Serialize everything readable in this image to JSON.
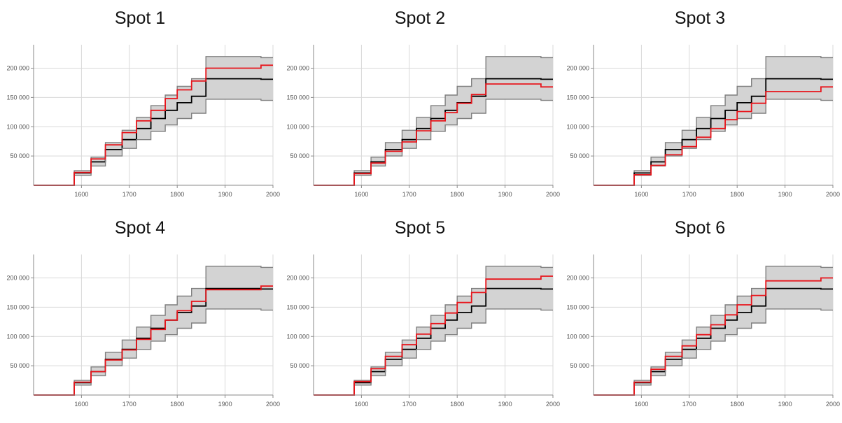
{
  "chart_data": [
    {
      "type": "line",
      "title": "Spot 1",
      "xlim": [
        1500,
        2000
      ],
      "ylim": [
        0,
        240000
      ],
      "x_ticks": [
        1600,
        1700,
        1800,
        1900,
        2000
      ],
      "x_tick_labels": [
        "1600",
        "1700",
        "1800",
        "1900",
        "2000"
      ],
      "y_ticks": [
        50000,
        100000,
        150000,
        200000
      ],
      "y_tick_labels": [
        "50 000",
        "100 000",
        "150 000",
        "200 000"
      ],
      "grid": true,
      "steps_x": [
        1500,
        1585,
        1620,
        1650,
        1685,
        1715,
        1745,
        1775,
        1800,
        1830,
        1860,
        1975,
        2000
      ],
      "series": [
        {
          "color": "#7f7f7f",
          "values": [
            0,
            25000,
            48000,
            73000,
            94000,
            116000,
            136000,
            154000,
            169000,
            182000,
            220000,
            218000,
            0
          ]
        },
        {
          "color": "#000000",
          "values": [
            0,
            21000,
            40000,
            61000,
            78000,
            97000,
            114000,
            128000,
            141000,
            152000,
            182000,
            181000,
            0
          ]
        },
        {
          "color": "#7f7f7f",
          "values": [
            0,
            17000,
            33000,
            50000,
            63000,
            78000,
            92000,
            103000,
            114000,
            123000,
            147000,
            145000,
            0
          ]
        },
        {
          "color": "#e8141b",
          "values": [
            0,
            22000,
            45000,
            69000,
            90000,
            110000,
            128000,
            148000,
            163000,
            178000,
            200000,
            205000,
            0
          ]
        }
      ]
    },
    {
      "type": "line",
      "title": "Spot 2",
      "xlim": [
        1500,
        2000
      ],
      "ylim": [
        0,
        240000
      ],
      "x_ticks": [
        1600,
        1700,
        1800,
        1900,
        2000
      ],
      "x_tick_labels": [
        "1600",
        "1700",
        "1800",
        "1900",
        "2000"
      ],
      "y_ticks": [
        50000,
        100000,
        150000,
        200000
      ],
      "y_tick_labels": [
        "50 000",
        "100 000",
        "150 000",
        "200 000"
      ],
      "grid": true,
      "steps_x": [
        1500,
        1585,
        1620,
        1650,
        1685,
        1715,
        1745,
        1775,
        1800,
        1830,
        1860,
        1975,
        2000
      ],
      "series": [
        {
          "color": "#7f7f7f",
          "values": [
            0,
            25000,
            48000,
            73000,
            94000,
            116000,
            136000,
            154000,
            169000,
            182000,
            220000,
            218000,
            0
          ]
        },
        {
          "color": "#000000",
          "values": [
            0,
            21000,
            40000,
            61000,
            78000,
            97000,
            114000,
            128000,
            141000,
            152000,
            182000,
            181000,
            0
          ]
        },
        {
          "color": "#7f7f7f",
          "values": [
            0,
            17000,
            33000,
            50000,
            63000,
            78000,
            92000,
            103000,
            114000,
            123000,
            147000,
            145000,
            0
          ]
        },
        {
          "color": "#e8141b",
          "values": [
            0,
            20000,
            38000,
            58000,
            74000,
            93000,
            110000,
            124000,
            140000,
            155000,
            173000,
            168000,
            0
          ]
        }
      ]
    },
    {
      "type": "line",
      "title": "Spot 3",
      "xlim": [
        1500,
        2000
      ],
      "ylim": [
        0,
        240000
      ],
      "x_ticks": [
        1600,
        1700,
        1800,
        1900,
        2000
      ],
      "x_tick_labels": [
        "1600",
        "1700",
        "1800",
        "1900",
        "2000"
      ],
      "y_ticks": [
        50000,
        100000,
        150000,
        200000
      ],
      "y_tick_labels": [
        "50 000",
        "100 000",
        "150 000",
        "200 000"
      ],
      "grid": true,
      "steps_x": [
        1500,
        1585,
        1620,
        1650,
        1685,
        1715,
        1745,
        1775,
        1800,
        1830,
        1860,
        1975,
        2000
      ],
      "series": [
        {
          "color": "#7f7f7f",
          "values": [
            0,
            25000,
            48000,
            73000,
            94000,
            116000,
            136000,
            154000,
            169000,
            182000,
            220000,
            218000,
            0
          ]
        },
        {
          "color": "#000000",
          "values": [
            0,
            21000,
            40000,
            61000,
            78000,
            97000,
            114000,
            128000,
            141000,
            152000,
            182000,
            181000,
            0
          ]
        },
        {
          "color": "#7f7f7f",
          "values": [
            0,
            17000,
            33000,
            50000,
            63000,
            78000,
            92000,
            103000,
            114000,
            123000,
            147000,
            145000,
            0
          ]
        },
        {
          "color": "#e8141b",
          "values": [
            0,
            18000,
            34000,
            52000,
            66000,
            82000,
            97000,
            112000,
            126000,
            140000,
            160000,
            168000,
            0
          ]
        }
      ]
    },
    {
      "type": "line",
      "title": "Spot 4",
      "xlim": [
        1500,
        2000
      ],
      "ylim": [
        0,
        240000
      ],
      "x_ticks": [
        1600,
        1700,
        1800,
        1900,
        2000
      ],
      "x_tick_labels": [
        "1600",
        "1700",
        "1800",
        "1900",
        "2000"
      ],
      "y_ticks": [
        50000,
        100000,
        150000,
        200000
      ],
      "y_tick_labels": [
        "50 000",
        "100 000",
        "150 000",
        "200 000"
      ],
      "grid": true,
      "steps_x": [
        1500,
        1585,
        1620,
        1650,
        1685,
        1715,
        1745,
        1775,
        1800,
        1830,
        1860,
        1975,
        2000
      ],
      "series": [
        {
          "color": "#7f7f7f",
          "values": [
            0,
            25000,
            48000,
            73000,
            94000,
            116000,
            136000,
            154000,
            169000,
            182000,
            220000,
            218000,
            0
          ]
        },
        {
          "color": "#000000",
          "values": [
            0,
            21000,
            40000,
            61000,
            78000,
            97000,
            114000,
            128000,
            141000,
            152000,
            182000,
            181000,
            0
          ]
        },
        {
          "color": "#7f7f7f",
          "values": [
            0,
            17000,
            33000,
            50000,
            63000,
            78000,
            92000,
            103000,
            114000,
            123000,
            147000,
            145000,
            0
          ]
        },
        {
          "color": "#e8141b",
          "values": [
            0,
            22000,
            40000,
            60000,
            77000,
            95000,
            112000,
            128000,
            144000,
            160000,
            180000,
            186000,
            0
          ]
        }
      ]
    },
    {
      "type": "line",
      "title": "Spot 5",
      "xlim": [
        1500,
        2000
      ],
      "ylim": [
        0,
        240000
      ],
      "x_ticks": [
        1600,
        1700,
        1800,
        1900,
        2000
      ],
      "x_tick_labels": [
        "1600",
        "1700",
        "1800",
        "1900",
        "2000"
      ],
      "y_ticks": [
        50000,
        100000,
        150000,
        200000
      ],
      "y_tick_labels": [
        "50 000",
        "100 000",
        "150 000",
        "200 000"
      ],
      "grid": true,
      "steps_x": [
        1500,
        1585,
        1620,
        1650,
        1685,
        1715,
        1745,
        1775,
        1800,
        1830,
        1860,
        1975,
        2000
      ],
      "series": [
        {
          "color": "#7f7f7f",
          "values": [
            0,
            25000,
            48000,
            73000,
            94000,
            116000,
            136000,
            154000,
            169000,
            182000,
            220000,
            218000,
            0
          ]
        },
        {
          "color": "#000000",
          "values": [
            0,
            21000,
            40000,
            61000,
            78000,
            97000,
            114000,
            128000,
            141000,
            152000,
            182000,
            181000,
            0
          ]
        },
        {
          "color": "#7f7f7f",
          "values": [
            0,
            17000,
            33000,
            50000,
            63000,
            78000,
            92000,
            103000,
            114000,
            123000,
            147000,
            145000,
            0
          ]
        },
        {
          "color": "#e8141b",
          "values": [
            0,
            23000,
            45000,
            66000,
            86000,
            104000,
            122000,
            140000,
            158000,
            175000,
            198000,
            203000,
            0
          ]
        }
      ]
    },
    {
      "type": "line",
      "title": "Spot 6",
      "xlim": [
        1500,
        2000
      ],
      "ylim": [
        0,
        240000
      ],
      "x_ticks": [
        1600,
        1700,
        1800,
        1900,
        2000
      ],
      "x_tick_labels": [
        "1600",
        "1700",
        "1800",
        "1900",
        "2000"
      ],
      "y_ticks": [
        50000,
        100000,
        150000,
        200000
      ],
      "y_tick_labels": [
        "50 000",
        "100 000",
        "150 000",
        "200 000"
      ],
      "grid": true,
      "steps_x": [
        1500,
        1585,
        1620,
        1650,
        1685,
        1715,
        1745,
        1775,
        1800,
        1830,
        1860,
        1975,
        2000
      ],
      "series": [
        {
          "color": "#7f7f7f",
          "values": [
            0,
            25000,
            48000,
            73000,
            94000,
            116000,
            136000,
            154000,
            169000,
            182000,
            220000,
            218000,
            0
          ]
        },
        {
          "color": "#000000",
          "values": [
            0,
            21000,
            40000,
            61000,
            78000,
            97000,
            114000,
            128000,
            141000,
            152000,
            182000,
            181000,
            0
          ]
        },
        {
          "color": "#7f7f7f",
          "values": [
            0,
            17000,
            33000,
            50000,
            63000,
            78000,
            92000,
            103000,
            114000,
            123000,
            147000,
            145000,
            0
          ]
        },
        {
          "color": "#e8141b",
          "values": [
            0,
            22000,
            44000,
            66000,
            84000,
            103000,
            120000,
            137000,
            154000,
            170000,
            195000,
            200000,
            0
          ]
        }
      ]
    }
  ]
}
